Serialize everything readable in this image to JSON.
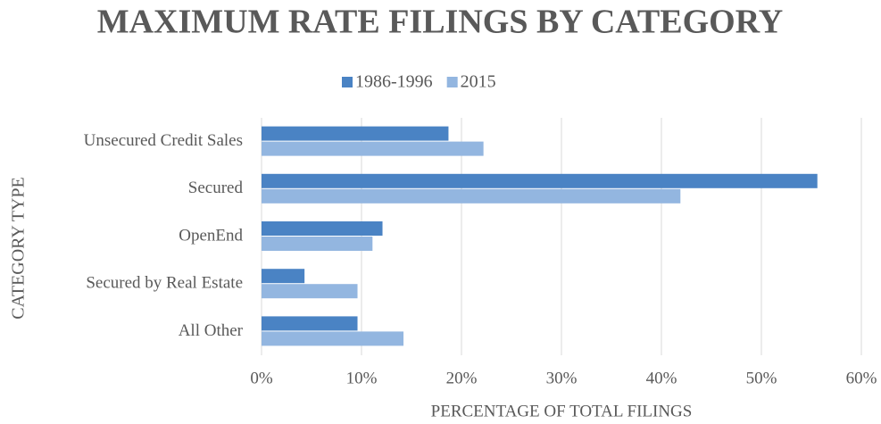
{
  "chart_data": {
    "type": "bar",
    "orientation": "horizontal",
    "title": "MAXIMUM RATE FILINGS BY CATEGORY",
    "x_label": "PERCENTAGE OF TOTAL FILINGS",
    "y_label": "CATEGORY TYPE",
    "categories": [
      "Unsecured Credit Sales",
      "Secured",
      "OpenEnd",
      "Secured by Real Estate",
      "All Other"
    ],
    "series": [
      {
        "name": "1986-1996",
        "color": "#4a83c4",
        "values": [
          18.7,
          55.6,
          12.1,
          4.3,
          9.6
        ]
      },
      {
        "name": "2015",
        "color": "#93b6e0",
        "values": [
          22.2,
          41.9,
          11.1,
          9.6,
          14.2
        ]
      }
    ],
    "xlim": [
      0,
      60
    ],
    "xticks": [
      {
        "value": 0,
        "label": "0%"
      },
      {
        "value": 10,
        "label": "10%"
      },
      {
        "value": 20,
        "label": "20%"
      },
      {
        "value": 30,
        "label": "30%"
      },
      {
        "value": 40,
        "label": "40%"
      },
      {
        "value": 50,
        "label": "50%"
      },
      {
        "value": 60,
        "label": "60%"
      }
    ],
    "grid": true,
    "legend": "top"
  }
}
